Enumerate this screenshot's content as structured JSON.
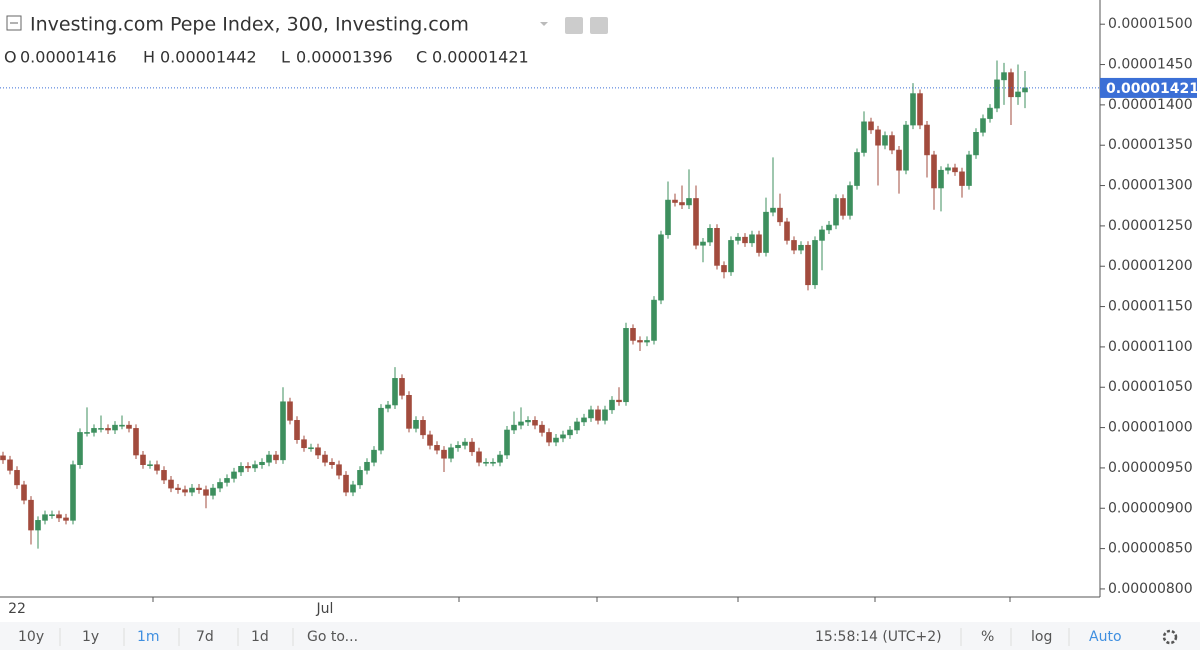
{
  "chart_data": {
    "type": "candlestick",
    "title": "Investing.com Pepe Index, 300, Investing.com",
    "readout": [
      {
        "key": "O",
        "value": 1.416e-05,
        "label": "0.00001416"
      },
      {
        "key": "H",
        "value": 1.442e-05,
        "label": "0.00001442"
      },
      {
        "key": "L",
        "value": 1.396e-05,
        "label": "0.00001396"
      },
      {
        "key": "C",
        "value": 1.421e-05,
        "label": "0.00001421"
      }
    ],
    "last_price": {
      "value": 1.421e-05,
      "label": "0.00001421"
    },
    "up_color": "#3d8f5e",
    "down_color": "#a24b3d",
    "price_line_color": "#3b6fd6",
    "categories": [
      null,
      null,
      "22",
      null,
      null,
      null,
      null,
      null,
      null,
      null,
      null,
      null,
      null,
      null,
      null,
      null,
      null,
      null,
      null,
      null,
      null,
      null,
      null,
      null,
      null,
      null,
      null,
      null,
      null,
      null,
      null,
      null,
      null,
      null,
      null,
      null,
      null,
      null,
      null,
      null,
      null,
      null,
      null,
      null,
      null,
      null,
      "Jul",
      null,
      null,
      null,
      null,
      null,
      null,
      null,
      null,
      null,
      null,
      null,
      null,
      null,
      null,
      null,
      null,
      null,
      null,
      null,
      null,
      null,
      null,
      null,
      null,
      null,
      null,
      null,
      null,
      null,
      null,
      null,
      null,
      null,
      null,
      null,
      null,
      null,
      null,
      null,
      null,
      null,
      null,
      null,
      null,
      null,
      null,
      null,
      null,
      null,
      null,
      null,
      null,
      null,
      null,
      null,
      null,
      null,
      null,
      null,
      null,
      null,
      null,
      null,
      null,
      null,
      null,
      null,
      null,
      null,
      null,
      null,
      null,
      null,
      null,
      null,
      null,
      null,
      null,
      null,
      null,
      null,
      null,
      null,
      null,
      null,
      null,
      null,
      null,
      null,
      null,
      null,
      null,
      null,
      null,
      null,
      null,
      null,
      null,
      null,
      null
    ],
    "open": [
      9.65e-06,
      9.6e-06,
      9.47e-06,
      9.29e-06,
      9.1e-06,
      8.73e-06,
      8.85e-06,
      8.92e-06,
      8.92e-06,
      8.88e-06,
      8.85e-06,
      9.54e-06,
      9.94e-06,
      9.94e-06,
      9.99e-06,
      9.99e-06,
      9.97e-06,
      1.003e-05,
      1.003e-05,
      9.99e-06,
      9.66e-06,
      9.54e-06,
      9.54e-06,
      9.47e-06,
      9.35e-06,
      9.25e-06,
      9.23e-06,
      9.2e-06,
      9.25e-06,
      9.23e-06,
      9.16e-06,
      9.25e-06,
      9.32e-06,
      9.37e-06,
      9.45e-06,
      9.52e-06,
      9.5e-06,
      9.54e-06,
      9.57e-06,
      9.66e-06,
      9.6e-06,
      1.032e-05,
      1.009e-05,
      9.85e-06,
      9.75e-06,
      9.75e-06,
      9.66e-06,
      9.57e-06,
      9.54e-06,
      9.41e-06,
      9.2e-06,
      9.29e-06,
      9.47e-06,
      9.57e-06,
      9.72e-06,
      1.024e-05,
      1.028e-05,
      1.061e-05,
      1.04e-05,
      9.99e-06,
      1.009e-05,
      9.91e-06,
      9.78e-06,
      9.72e-06,
      9.62e-06,
      9.75e-06,
      9.78e-06,
      9.82e-06,
      9.7e-06,
      9.57e-06,
      9.57e-06,
      9.57e-06,
      9.66e-06,
      9.97e-06,
      1.003e-05,
      1.007e-05,
      1.009e-05,
      1.003e-05,
      9.94e-06,
      9.82e-06,
      9.87e-06,
      9.91e-06,
      9.97e-06,
      1.007e-05,
      1.012e-05,
      1.022e-05,
      1.009e-05,
      1.022e-05,
      1.034e-05,
      1.032e-05,
      1.123e-05,
      1.108e-05,
      1.106e-05,
      1.108e-05,
      1.158e-05,
      1.239e-05,
      1.282e-05,
      1.279e-05,
      1.276e-05,
      1.284e-05,
      1.226e-05,
      1.23e-05,
      1.247e-05,
      1.201e-05,
      1.193e-05,
      1.232e-05,
      1.236e-05,
      1.229e-05,
      1.239e-05,
      1.217e-05,
      1.267e-05,
      1.272e-05,
      1.255e-05,
      1.232e-05,
      1.22e-05,
      1.226e-05,
      1.177e-05,
      1.232e-05,
      1.245e-05,
      1.251e-05,
      1.284e-05,
      1.263e-05,
      1.3e-05,
      1.341e-05,
      1.379e-05,
      1.369e-05,
      1.35e-05,
      1.362e-05,
      1.344e-05,
      1.319e-05,
      1.375e-05,
      1.414e-05,
      1.375e-05,
      1.338e-05,
      1.297e-05,
      1.319e-05,
      1.322e-05,
      1.317e-05,
      1.3e-05,
      1.338e-05,
      1.366e-05,
      1.383e-05,
      1.396e-05,
      1.431e-05,
      1.44e-05,
      1.41e-05,
      1.416e-05
    ],
    "high": [
      9.7e-06,
      9.65e-06,
      9.52e-06,
      9.34e-06,
      9.15e-06,
      8.9e-06,
      8.97e-06,
      8.97e-06,
      8.97e-06,
      8.93e-06,
      9.59e-06,
      9.99e-06,
      1.025e-05,
      1.004e-05,
      1.015e-05,
      1.004e-05,
      1.008e-05,
      1.015e-05,
      1.008e-05,
      1.004e-05,
      9.71e-06,
      9.59e-06,
      9.59e-06,
      9.52e-06,
      9.4e-06,
      9.3e-06,
      9.28e-06,
      9.3e-06,
      9.3e-06,
      9.28e-06,
      9.3e-06,
      9.37e-06,
      9.42e-06,
      9.5e-06,
      9.57e-06,
      9.57e-06,
      9.59e-06,
      9.62e-06,
      9.71e-06,
      9.71e-06,
      1.05e-05,
      1.037e-05,
      1.014e-05,
      9.9e-06,
      9.8e-06,
      9.8e-06,
      9.71e-06,
      9.62e-06,
      9.59e-06,
      9.46e-06,
      9.34e-06,
      9.52e-06,
      9.62e-06,
      9.77e-06,
      1.029e-05,
      1.033e-05,
      1.075e-05,
      1.066e-05,
      1.045e-05,
      1.014e-05,
      1.014e-05,
      9.96e-06,
      9.83e-06,
      9.77e-06,
      9.8e-06,
      9.83e-06,
      9.87e-06,
      9.87e-06,
      9.75e-06,
      9.62e-06,
      9.62e-06,
      9.71e-06,
      1.002e-05,
      1.02e-05,
      1.025e-05,
      1.014e-05,
      1.014e-05,
      1.008e-05,
      9.99e-06,
      9.92e-06,
      9.96e-06,
      1.002e-05,
      1.012e-05,
      1.017e-05,
      1.027e-05,
      1.027e-05,
      1.027e-05,
      1.039e-05,
      1.05e-05,
      1.13e-05,
      1.128e-05,
      1.113e-05,
      1.113e-05,
      1.163e-05,
      1.244e-05,
      1.305e-05,
      1.29e-05,
      1.3e-05,
      1.32e-05,
      1.3e-05,
      1.235e-05,
      1.252e-05,
      1.252e-05,
      1.206e-05,
      1.237e-05,
      1.241e-05,
      1.241e-05,
      1.244e-05,
      1.244e-05,
      1.285e-05,
      1.335e-05,
      1.29e-05,
      1.26e-05,
      1.237e-05,
      1.231e-05,
      1.231e-05,
      1.237e-05,
      1.25e-05,
      1.256e-05,
      1.289e-05,
      1.289e-05,
      1.305e-05,
      1.346e-05,
      1.392e-05,
      1.384e-05,
      1.374e-05,
      1.367e-05,
      1.367e-05,
      1.349e-05,
      1.38e-05,
      1.427e-05,
      1.419e-05,
      1.38e-05,
      1.343e-05,
      1.324e-05,
      1.327e-05,
      1.327e-05,
      1.322e-05,
      1.343e-05,
      1.371e-05,
      1.388e-05,
      1.401e-05,
      1.455e-05,
      1.452e-05,
      1.445e-05,
      1.45e-05,
      1.442e-05
    ],
    "low": [
      9.55e-06,
      9.42e-06,
      9.24e-06,
      9.05e-06,
      8.55e-06,
      8.5e-06,
      8.8e-06,
      8.87e-06,
      8.83e-06,
      8.8e-06,
      8.8e-06,
      9.49e-06,
      9.89e-06,
      9.89e-06,
      9.94e-06,
      9.92e-06,
      9.92e-06,
      9.98e-06,
      9.94e-06,
      9.61e-06,
      9.49e-06,
      9.49e-06,
      9.42e-06,
      9.3e-06,
      9.2e-06,
      9.18e-06,
      9.15e-06,
      9.15e-06,
      9.18e-06,
      9e-06,
      9.11e-06,
      9.2e-06,
      9.27e-06,
      9.32e-06,
      9.4e-06,
      9.45e-06,
      9.45e-06,
      9.49e-06,
      9.52e-06,
      9.55e-06,
      9.55e-06,
      1.004e-05,
      9.8e-06,
      9.7e-06,
      9.7e-06,
      9.61e-06,
      9.52e-06,
      9.49e-06,
      9.36e-06,
      9.15e-06,
      9.15e-06,
      9.24e-06,
      9.42e-06,
      9.52e-06,
      9.67e-06,
      1.019e-05,
      1.023e-05,
      1.035e-05,
      9.94e-06,
      9.94e-06,
      9.86e-06,
      9.73e-06,
      9.67e-06,
      9.45e-06,
      9.57e-06,
      9.7e-06,
      9.73e-06,
      9.65e-06,
      9.52e-06,
      9.52e-06,
      9.52e-06,
      9.52e-06,
      9.61e-06,
      9.92e-06,
      9.98e-06,
      1.002e-05,
      9.98e-06,
      9.89e-06,
      9.77e-06,
      9.77e-06,
      9.82e-06,
      9.86e-06,
      9.92e-06,
      1.002e-05,
      1.007e-05,
      1.004e-05,
      1.004e-05,
      1.017e-05,
      1.027e-05,
      1.027e-05,
      1.103e-05,
      1.095e-05,
      1.101e-05,
      1.103e-05,
      1.153e-05,
      1.234e-05,
      1.274e-05,
      1.271e-05,
      1.271e-05,
      1.221e-05,
      1.205e-05,
      1.225e-05,
      1.196e-05,
      1.185e-05,
      1.188e-05,
      1.227e-05,
      1.224e-05,
      1.224e-05,
      1.212e-05,
      1.212e-05,
      1.262e-05,
      1.25e-05,
      1.227e-05,
      1.215e-05,
      1.215e-05,
      1.17e-05,
      1.172e-05,
      1.195e-05,
      1.24e-05,
      1.246e-05,
      1.258e-05,
      1.258e-05,
      1.295e-05,
      1.336e-05,
      1.364e-05,
      1.3e-05,
      1.345e-05,
      1.339e-05,
      1.29e-05,
      1.314e-05,
      1.37e-05,
      1.37e-05,
      1.31e-05,
      1.27e-05,
      1.268e-05,
      1.314e-05,
      1.312e-05,
      1.285e-05,
      1.295e-05,
      1.333e-05,
      1.361e-05,
      1.378e-05,
      1.391e-05,
      1.4e-05,
      1.375e-05,
      1.4e-05,
      1.396e-05
    ],
    "close": [
      9.6e-06,
      9.47e-06,
      9.29e-06,
      9.1e-06,
      8.73e-06,
      8.85e-06,
      8.92e-06,
      8.92e-06,
      8.88e-06,
      8.85e-06,
      9.54e-06,
      9.94e-06,
      9.94e-06,
      9.99e-06,
      9.99e-06,
      9.97e-06,
      1.003e-05,
      1.003e-05,
      9.99e-06,
      9.66e-06,
      9.54e-06,
      9.54e-06,
      9.47e-06,
      9.35e-06,
      9.25e-06,
      9.23e-06,
      9.2e-06,
      9.25e-06,
      9.23e-06,
      9.16e-06,
      9.25e-06,
      9.32e-06,
      9.37e-06,
      9.45e-06,
      9.52e-06,
      9.5e-06,
      9.54e-06,
      9.57e-06,
      9.66e-06,
      9.6e-06,
      1.032e-05,
      1.009e-05,
      9.85e-06,
      9.75e-06,
      9.75e-06,
      9.66e-06,
      9.57e-06,
      9.54e-06,
      9.41e-06,
      9.2e-06,
      9.29e-06,
      9.47e-06,
      9.57e-06,
      9.72e-06,
      1.024e-05,
      1.028e-05,
      1.061e-05,
      1.04e-05,
      9.99e-06,
      1.009e-05,
      9.91e-06,
      9.78e-06,
      9.72e-06,
      9.62e-06,
      9.75e-06,
      9.78e-06,
      9.82e-06,
      9.7e-06,
      9.57e-06,
      9.57e-06,
      9.57e-06,
      9.66e-06,
      9.97e-06,
      1.003e-05,
      1.007e-05,
      1.009e-05,
      1.003e-05,
      9.94e-06,
      9.82e-06,
      9.87e-06,
      9.91e-06,
      9.97e-06,
      1.007e-05,
      1.012e-05,
      1.022e-05,
      1.009e-05,
      1.022e-05,
      1.034e-05,
      1.032e-05,
      1.123e-05,
      1.108e-05,
      1.106e-05,
      1.108e-05,
      1.158e-05,
      1.239e-05,
      1.282e-05,
      1.279e-05,
      1.276e-05,
      1.284e-05,
      1.226e-05,
      1.23e-05,
      1.247e-05,
      1.201e-05,
      1.193e-05,
      1.232e-05,
      1.236e-05,
      1.229e-05,
      1.239e-05,
      1.217e-05,
      1.267e-05,
      1.272e-05,
      1.255e-05,
      1.232e-05,
      1.22e-05,
      1.226e-05,
      1.177e-05,
      1.232e-05,
      1.245e-05,
      1.251e-05,
      1.284e-05,
      1.263e-05,
      1.3e-05,
      1.341e-05,
      1.379e-05,
      1.369e-05,
      1.35e-05,
      1.362e-05,
      1.344e-05,
      1.319e-05,
      1.375e-05,
      1.414e-05,
      1.375e-05,
      1.338e-05,
      1.297e-05,
      1.319e-05,
      1.322e-05,
      1.317e-05,
      1.3e-05,
      1.338e-05,
      1.366e-05,
      1.383e-05,
      1.396e-05,
      1.431e-05,
      1.44e-05,
      1.41e-05,
      1.416e-05,
      1.421e-05
    ],
    "ylim": [
      7.9e-06,
      1.53e-05
    ],
    "yticks": [
      {
        "value": 8e-06,
        "label": "0.00000800"
      },
      {
        "value": 8.5e-06,
        "label": "0.00000850"
      },
      {
        "value": 9e-06,
        "label": "0.00000900"
      },
      {
        "value": 9.5e-06,
        "label": "0.00000950"
      },
      {
        "value": 1e-05,
        "label": "0.00001000"
      },
      {
        "value": 1.05e-05,
        "label": "0.00001050"
      },
      {
        "value": 1.1e-05,
        "label": "0.00001100"
      },
      {
        "value": 1.15e-05,
        "label": "0.00001150"
      },
      {
        "value": 1.2e-05,
        "label": "0.00001200"
      },
      {
        "value": 1.25e-05,
        "label": "0.00001250"
      },
      {
        "value": 1.3e-05,
        "label": "0.00001300"
      },
      {
        "value": 1.35e-05,
        "label": "0.00001350"
      },
      {
        "value": 1.4e-05,
        "label": "0.00001400"
      },
      {
        "value": 1.45e-05,
        "label": "0.00001450"
      },
      {
        "value": 1.5e-05,
        "label": "0.00001500"
      }
    ],
    "grid": false
  },
  "toolbar": {
    "ranges": [
      "10y",
      "1y",
      "1m",
      "7d",
      "1d"
    ],
    "active_range": "1m",
    "goto": "Go to...",
    "clock": "15:58:14 (UTC+2)",
    "options": [
      "%",
      "log",
      "Auto"
    ],
    "active_option": "Auto"
  }
}
